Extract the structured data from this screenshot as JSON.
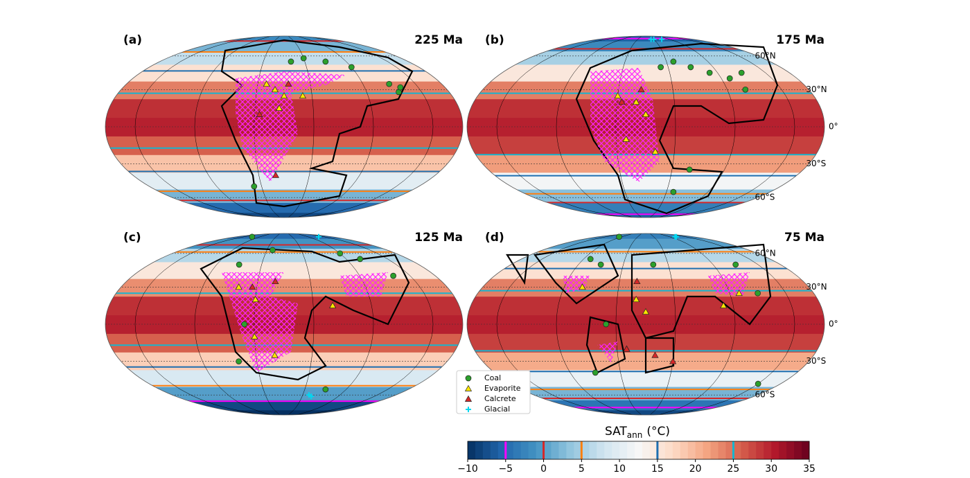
{
  "figure": {
    "sat_lats": [
      -90,
      -75,
      -60,
      -45,
      -30,
      -15,
      0,
      15,
      30,
      45,
      60,
      75,
      90
    ],
    "lat_ticks": [
      {
        "value": 60,
        "label": "60°N"
      },
      {
        "value": 30,
        "label": "30°N"
      },
      {
        "value": 0,
        "label": "0°"
      },
      {
        "value": -30,
        "label": "30°S"
      },
      {
        "value": -60,
        "label": "60°S"
      }
    ],
    "panels": [
      {
        "label": "(a)",
        "age": "225 Ma",
        "show_lat_labels": false,
        "sat": [
          -8,
          -5,
          2,
          10,
          19,
          26,
          30,
          29,
          24,
          16,
          7,
          2,
          -2
        ],
        "series": [
          {
            "lon": [
              10,
              30,
              60,
              90,
              120,
              125,
              130,
              -40
            ],
            "lat": [
              55,
              58,
              55,
              50,
              35,
              28,
              32,
              -50
            ]
          },
          {
            "lon": [
              -20,
              -10,
              0,
              -5,
              20
            ],
            "lat": [
              35,
              30,
              25,
              15,
              25
            ]
          },
          {
            "lon": [
              -10,
              -25,
              5
            ],
            "lat": [
              -40,
              10,
              35
            ]
          },
          {
            "lon": [],
            "lat": []
          }
        ]
      },
      {
        "label": "(b)",
        "age": "175 Ma",
        "show_lat_labels": true,
        "sat": [
          -6,
          -3,
          3,
          12,
          22,
          28,
          30,
          29,
          24,
          15,
          5,
          -2,
          -6
        ],
        "series": [
          {
            "lon": [
              20,
              40,
              60,
              80,
              100,
              120,
              110,
              50,
              40
            ],
            "lat": [
              50,
              55,
              50,
              45,
              40,
              45,
              30,
              -35,
              -55
            ]
          },
          {
            "lon": [
              -30,
              -10,
              0,
              -20,
              10
            ],
            "lat": [
              25,
              20,
              10,
              -10,
              -20
            ]
          },
          {
            "lon": [
              -5,
              -25
            ],
            "lat": [
              30,
              20
            ]
          },
          {
            "lon": [
              20,
              30,
              60
            ],
            "lat": [
              85,
              85,
              85
            ]
          }
        ]
      },
      {
        "label": "(c)",
        "age": "125 Ma",
        "show_lat_labels": false,
        "sat": [
          -12,
          -8,
          0,
          9,
          18,
          26,
          30,
          29,
          23,
          15,
          6,
          -1,
          -5
        ],
        "series": [
          {
            "lon": [
              -120,
              -60,
              -20,
              90,
              110,
              130,
              -40,
              -50,
              60
            ],
            "lat": [
              85,
              50,
              65,
              60,
              55,
              40,
              0,
              -30,
              -55
            ]
          },
          {
            "lon": [
              -50,
              -30,
              -30,
              -10,
              50
            ],
            "lat": [
              30,
              20,
              -10,
              -25,
              15
            ]
          },
          {
            "lon": [
              -35,
              -10
            ],
            "lat": [
              30,
              35
            ]
          },
          {
            "lon": [
              40,
              45,
              130
            ],
            "lat": [
              -60,
              -62,
              85
            ]
          }
        ]
      },
      {
        "label": "(d)",
        "age": "75 Ma",
        "show_lat_labels": true,
        "sat": [
          -8,
          -4,
          2,
          11,
          21,
          28,
          30,
          29,
          24,
          16,
          6,
          0,
          -3
        ],
        "series": [
          {
            "lon": [
              -100,
              -80,
              -60,
              10,
              120,
              -60,
              -40,
              120,
              150
            ],
            "lat": [
              85,
              55,
              50,
              50,
              50,
              -40,
              0,
              25,
              -50
            ]
          },
          {
            "lon": [
              -70,
              -10,
              0,
              -20,
              80,
              100
            ],
            "lat": [
              30,
              20,
              10,
              -20,
              15,
              25
            ]
          },
          {
            "lon": [
              -20,
              10,
              30,
              -10
            ],
            "lat": [
              -20,
              -25,
              -30,
              35
            ]
          },
          {
            "lon": [
              110,
              115
            ],
            "lat": [
              85,
              85
            ]
          }
        ]
      }
    ],
    "legend": [
      {
        "name": "Coal",
        "marker": "circle",
        "color": "#2ca02c"
      },
      {
        "name": "Evaporite",
        "marker": "triangle",
        "color": "#ffe600"
      },
      {
        "name": "Calcrete",
        "marker": "triangle",
        "color": "#d62728"
      },
      {
        "name": "Glacial",
        "marker": "plus",
        "color": "#00d8f0"
      }
    ],
    "colorbar": {
      "label": {
        "main": "SAT",
        "sub": "ann",
        "unit": "(°C)"
      },
      "colormap": "RdBu_r",
      "lim": [
        -10,
        35
      ],
      "ticks": [
        {
          "value": -10,
          "label": "−10"
        },
        {
          "value": -5,
          "label": "−5"
        },
        0,
        5,
        10,
        15,
        20,
        25,
        30,
        35
      ],
      "contours": [
        {
          "level": -5,
          "color": "#ff00ff"
        },
        {
          "level": 0,
          "color": "#d62728"
        },
        {
          "level": 5,
          "color": "#ff7f0e"
        },
        {
          "level": 15,
          "color": "#1f6fb0"
        },
        {
          "level": 25,
          "color": "#17b5cf"
        }
      ]
    }
  }
}
